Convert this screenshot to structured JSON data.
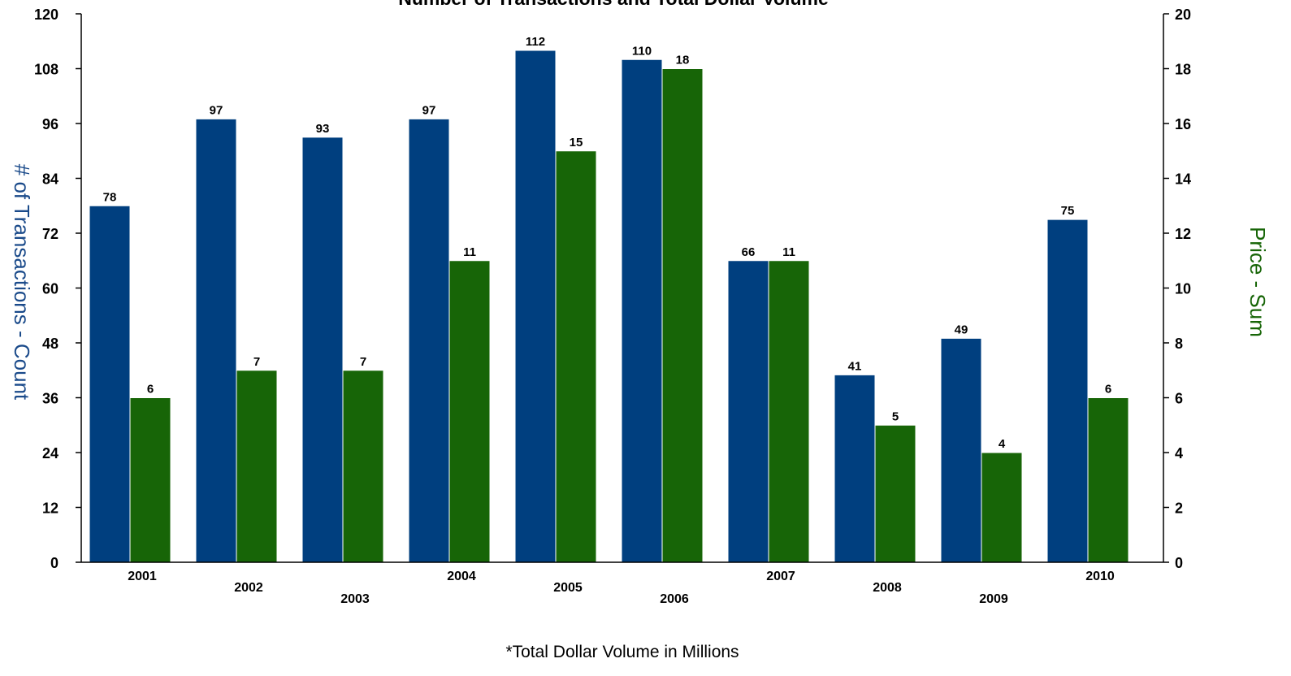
{
  "chart_data": {
    "type": "bar",
    "title": "Number of Transactions and  Total Dollar Volume",
    "categories": [
      "2001",
      "2002",
      "2003",
      "2004",
      "2005",
      "2006",
      "2007",
      "2008",
      "2009",
      "2010"
    ],
    "series": [
      {
        "values": [
          78,
          97,
          93,
          97,
          112,
          110,
          66,
          41,
          49,
          75
        ],
        "color": "#003f7f",
        "axis": "left"
      },
      {
        "values": [
          6,
          7,
          7,
          11,
          15,
          18,
          11,
          5,
          4,
          6
        ],
        "color": "#176507",
        "axis": "right"
      }
    ],
    "ylabel": "# of Transactions - Count",
    "ylabel_color": "#1a4a8a",
    "ylim": [
      0,
      120
    ],
    "yticks": [
      "0",
      "12",
      "24",
      "36",
      "48",
      "60",
      "72",
      "84",
      "96",
      "108",
      "120"
    ],
    "y2label": "Price - Sum",
    "y2label_color": "#176507",
    "y2lim": [
      0,
      20
    ],
    "y2ticks": [
      "0",
      "2",
      "4",
      "6",
      "8",
      "10",
      "12",
      "14",
      "16",
      "18",
      "20"
    ],
    "footnote": "*Total Dollar Volume in Millions",
    "grid": false,
    "legend": "none"
  }
}
